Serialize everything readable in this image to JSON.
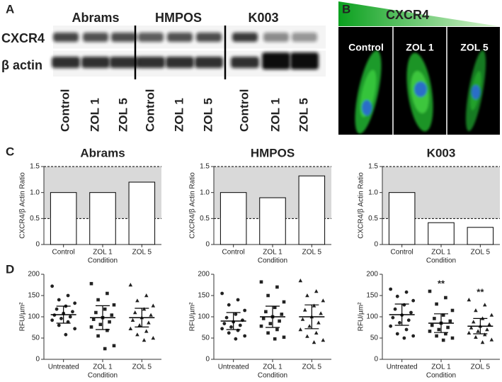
{
  "panels": [
    "A",
    "B",
    "C",
    "D"
  ],
  "blot": {
    "groups": [
      "Abrams",
      "HMPOS",
      "K003"
    ],
    "rows": [
      "CXCR4",
      "β actin"
    ],
    "lanes": [
      "Control",
      "ZOL 1",
      "ZOL 5",
      "Control",
      "ZOL 1",
      "ZOL 5",
      "Control",
      "ZOL 1",
      "ZOL 5"
    ]
  },
  "microscopy": {
    "gradient_label": "CXCR4",
    "panels": [
      "Control",
      "ZOL 1",
      "ZOL 5"
    ]
  },
  "chart_data": [
    {
      "type": "bar",
      "title": "Abrams",
      "ylabel": "CXCR4/β Actin Ratio",
      "xlabel": "Condition",
      "categories": [
        "Control",
        "ZOL 1",
        "ZOL 5"
      ],
      "values": [
        1.0,
        1.0,
        1.2
      ],
      "color": "#ffffff",
      "ylim": [
        0,
        1.5
      ],
      "yticks": [
        0,
        0.5,
        {
          "value": 1,
          "label": "1.0"
        },
        1.5
      ],
      "band": [
        0.5,
        1.5
      ]
    },
    {
      "type": "bar",
      "title": "HMPOS",
      "ylabel": "CXCR4/β Actin Ratio",
      "xlabel": "Condition",
      "categories": [
        "Control",
        "ZOL 1",
        "ZOL 5"
      ],
      "values": [
        1.0,
        0.9,
        1.32
      ],
      "color": "#ffffff",
      "ylim": [
        0,
        1.5
      ],
      "yticks": [
        0,
        0.5,
        {
          "value": 1,
          "label": "1.0"
        },
        1.5
      ],
      "band": [
        0.5,
        1.5
      ]
    },
    {
      "type": "bar",
      "title": "K003",
      "ylabel": "CXCR4/β Actin Ratio",
      "xlabel": "Condition",
      "categories": [
        "Control",
        "ZOL 1",
        "ZOL 5"
      ],
      "values": [
        1.0,
        0.42,
        0.33
      ],
      "color": "#ffffff",
      "ylim": [
        0,
        1.5
      ],
      "yticks": [
        0,
        0.5,
        {
          "value": 1,
          "label": "1.0"
        },
        1.5
      ],
      "band": [
        0.5,
        1.5
      ]
    },
    {
      "type": "dot",
      "ylabel": "RFU/µm²",
      "xlabel": "Condition",
      "categories": [
        "Untreated",
        "ZOL 1",
        "ZOL 5"
      ],
      "markers": [
        "circle",
        "square",
        "triangle"
      ],
      "color": "#222222",
      "ylim": [
        0,
        200
      ],
      "yticks": [
        0,
        50,
        100,
        150,
        200
      ],
      "groups": [
        {
          "values": [
            172,
            150,
            140,
            132,
            125,
            118,
            112,
            108,
            104,
            100,
            96,
            92,
            88,
            80,
            72,
            58
          ],
          "mean": 105,
          "sd": 20
        },
        {
          "values": [
            178,
            155,
            140,
            128,
            118,
            110,
            104,
            98,
            94,
            88,
            82,
            76,
            68,
            55,
            32,
            25
          ],
          "mean": 98,
          "sd": 28
        },
        {
          "values": [
            175,
            150,
            138,
            126,
            118,
            110,
            104,
            98,
            92,
            86,
            80,
            72,
            66,
            58,
            50,
            45
          ],
          "mean": 98,
          "sd": 22
        }
      ]
    },
    {
      "type": "dot",
      "ylabel": "RFU/µm²",
      "xlabel": "Condition",
      "categories": [
        "Untreated",
        "ZOL 1",
        "ZOL 5"
      ],
      "markers": [
        "circle",
        "square",
        "triangle"
      ],
      "color": "#222222",
      "ylim": [
        0,
        200
      ],
      "yticks": [
        0,
        50,
        100,
        150,
        200
      ],
      "groups": [
        {
          "values": [
            155,
            140,
            128,
            115,
            106,
            98,
            92,
            88,
            84,
            80,
            76,
            72,
            68,
            62,
            55,
            48
          ],
          "mean": 90,
          "sd": 20
        },
        {
          "values": [
            182,
            170,
            150,
            135,
            122,
            112,
            106,
            100,
            96,
            90,
            84,
            78,
            70,
            62,
            52,
            48
          ],
          "mean": 100,
          "sd": 25
        },
        {
          "values": [
            185,
            160,
            150,
            138,
            126,
            116,
            108,
            100,
            94,
            86,
            78,
            70,
            62,
            54,
            45,
            40
          ],
          "mean": 100,
          "sd": 28
        }
      ]
    },
    {
      "type": "dot",
      "ylabel": "RFU/µm²",
      "xlabel": "Condition",
      "categories": [
        "Untreated",
        "ZOL 1",
        "ZOL 5"
      ],
      "markers": [
        "circle",
        "square",
        "triangle"
      ],
      "color": "#222222",
      "ylim": [
        0,
        200
      ],
      "yticks": [
        0,
        50,
        100,
        150,
        200
      ],
      "significance": [
        null,
        "**",
        "**"
      ],
      "groups": [
        {
          "values": [
            165,
            158,
            148,
            138,
            128,
            118,
            110,
            104,
            98,
            92,
            86,
            78,
            70,
            60,
            55,
            50
          ],
          "mean": 105,
          "sd": 25
        },
        {
          "values": [
            160,
            145,
            130,
            115,
            104,
            96,
            90,
            85,
            80,
            75,
            70,
            66,
            60,
            55,
            50,
            45
          ],
          "mean": 85,
          "sd": 22
        },
        {
          "values": [
            140,
            128,
            115,
            104,
            96,
            88,
            82,
            78,
            74,
            70,
            66,
            62,
            58,
            52,
            46,
            40
          ],
          "mean": 78,
          "sd": 18
        }
      ]
    }
  ]
}
